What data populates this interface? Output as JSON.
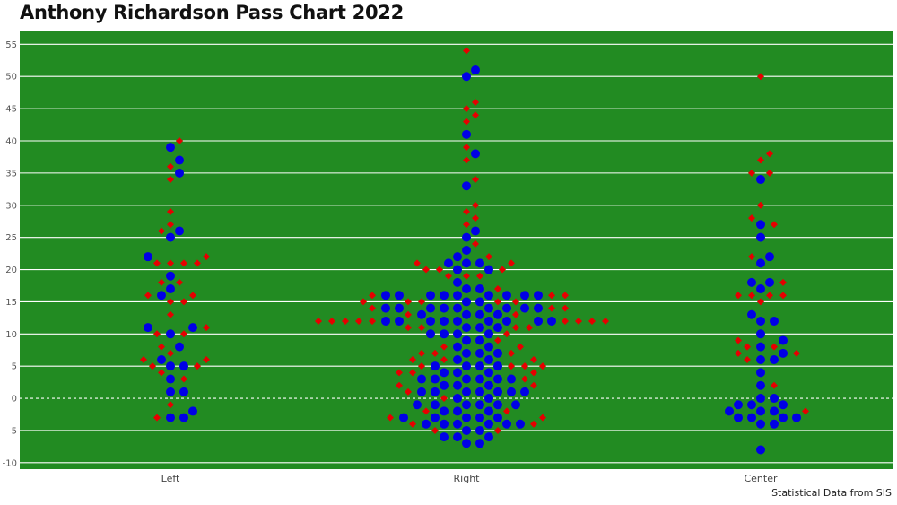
{
  "chart_data": {
    "type": "scatter",
    "title": "Anthony Richardson Pass Chart 2022",
    "xlabel": "",
    "ylabel": "",
    "categories": [
      "Left",
      "Right",
      "Center"
    ],
    "ylim": [
      -11,
      57
    ],
    "yticks": [
      -10,
      -5,
      0,
      5,
      10,
      15,
      20,
      25,
      30,
      35,
      40,
      45,
      50,
      55
    ],
    "grid": true,
    "zero_line": "dashed",
    "colors": {
      "background": "#228b22",
      "complete": "#0000e6",
      "incomplete": "#e60000",
      "grid": "#ffffff"
    },
    "series": [
      {
        "marker": "circle",
        "color": "#0000e6",
        "points": {
          "Left": [
            6,
            16,
            3,
            11,
            8,
            19,
            -2,
            26,
            10,
            39,
            1,
            5,
            -3,
            17,
            35,
            22,
            11,
            37,
            -3,
            25,
            1,
            5
          ],
          "Right": [
            12,
            14,
            3,
            11,
            16,
            -4,
            3,
            -3,
            1,
            12,
            3,
            1,
            -1,
            10,
            -4,
            16,
            14,
            -2,
            11,
            12,
            -3,
            7,
            3,
            16,
            -6,
            1,
            18,
            13,
            7,
            8,
            20,
            16,
            14,
            9,
            -4,
            1,
            6,
            -1,
            21,
            13,
            5,
            23,
            12,
            -7,
            15,
            -6,
            17,
            12,
            0,
            10,
            26,
            7,
            16,
            2,
            -2,
            21,
            20,
            38,
            -1,
            -4,
            -7,
            11,
            8,
            41,
            -3,
            51,
            12,
            5,
            22,
            33,
            -3,
            21,
            14,
            6,
            -6,
            25,
            14,
            50,
            -5,
            9,
            10,
            -1,
            1,
            3,
            13,
            5,
            -1,
            16,
            -2,
            4,
            16,
            5,
            2,
            14,
            16,
            -3,
            4,
            -4,
            12,
            17,
            1,
            -1,
            -5,
            14,
            10,
            -4,
            3,
            4,
            1,
            14,
            16,
            15,
            13,
            0,
            2,
            12,
            14,
            12
          ],
          "Center": [
            0,
            -3,
            -1,
            12,
            17,
            8,
            6,
            -4,
            -2,
            2,
            27,
            13,
            21,
            -3,
            34,
            18,
            -1,
            6,
            9,
            22,
            12,
            -8,
            -2,
            7,
            -3,
            25,
            4,
            18,
            -4,
            -1,
            -2,
            10,
            -3,
            0
          ]
        }
      },
      {
        "marker": "diamond",
        "color": "#e60000",
        "points": {
          "Left": [
            21,
            5,
            15,
            18,
            7,
            4,
            34,
            11,
            22,
            36,
            21,
            -3,
            16,
            27,
            6,
            3,
            40,
            -1,
            26,
            21,
            29,
            10,
            15,
            18,
            5,
            13,
            8,
            21,
            10,
            16,
            6
          ],
          "Right": [
            13,
            12,
            -2,
            15,
            4,
            12,
            -5,
            -5,
            7,
            6,
            5,
            16,
            13,
            12,
            2,
            -2,
            8,
            11,
            21,
            4,
            5,
            20,
            6,
            3,
            9,
            19,
            12,
            16,
            44,
            30,
            24,
            28,
            5,
            46,
            15,
            39,
            20,
            54,
            45,
            27,
            34,
            22,
            21,
            1,
            -4,
            14,
            19,
            29,
            19,
            37,
            2,
            43,
            15,
            7,
            17,
            16,
            12,
            6,
            8,
            20,
            11,
            14,
            0,
            4,
            12,
            15,
            5,
            12,
            10,
            7,
            11,
            12,
            -4,
            15,
            14,
            -3,
            11,
            -3,
            12
          ],
          "Center": [
            -2,
            7,
            16,
            8,
            38,
            16,
            28,
            35,
            27,
            50,
            2,
            35,
            30,
            22,
            18,
            37,
            16,
            6,
            15,
            9,
            16,
            8,
            7
          ]
        }
      }
    ]
  },
  "source_note": "Statistical Data from SIS"
}
